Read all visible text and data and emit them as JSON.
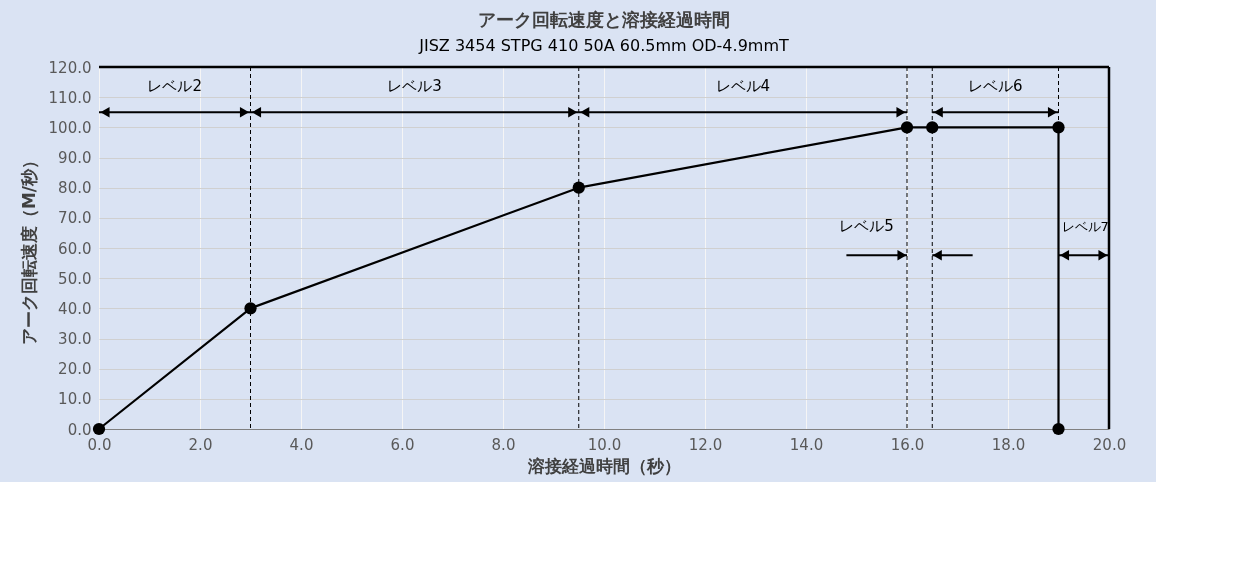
{
  "chart_data": {
    "type": "line",
    "title": "アーク回転速度と溶接経過時間",
    "subtitle": "JISZ 3454 STPG 410 50A  60.5mm OD-4.9mmT",
    "xlabel": "溶接経過時間（秒）",
    "ylabel": "アーク回転速度（M/秒）",
    "series": [
      {
        "color": "#000000",
        "x": [
          0,
          3.0,
          9.5,
          16.0,
          16.5,
          19.0,
          19.0
        ],
        "values": [
          0,
          40,
          80,
          100,
          100,
          100,
          0
        ]
      }
    ],
    "xlim": [
      0,
      20
    ],
    "ylim": [
      0,
      120
    ],
    "xticks": [
      {
        "value": 0,
        "label": "0.0"
      },
      {
        "value": 2,
        "label": "2.0"
      },
      {
        "value": 4,
        "label": "4.0"
      },
      {
        "value": 6,
        "label": "6.0"
      },
      {
        "value": 8,
        "label": "8.0"
      },
      {
        "value": 10,
        "label": "10.0"
      },
      {
        "value": 12,
        "label": "12.0"
      },
      {
        "value": 14,
        "label": "14.0"
      },
      {
        "value": 16,
        "label": "16.0"
      },
      {
        "value": 18,
        "label": "18.0"
      },
      {
        "value": 20,
        "label": "20.0"
      }
    ],
    "yticks": [
      {
        "value": 0,
        "label": "0.0"
      },
      {
        "value": 10,
        "label": "10.0"
      },
      {
        "value": 20,
        "label": "20.0"
      },
      {
        "value": 30,
        "label": "30.0"
      },
      {
        "value": 40,
        "label": "40.0"
      },
      {
        "value": 50,
        "label": "50.0"
      },
      {
        "value": 60,
        "label": "60.0"
      },
      {
        "value": 70,
        "label": "70.0"
      },
      {
        "value": 80,
        "label": "80.0"
      },
      {
        "value": 90,
        "label": "90.0"
      },
      {
        "value": 100,
        "label": "100.0"
      },
      {
        "value": 110,
        "label": "110.0"
      },
      {
        "value": 120,
        "label": "120.0"
      }
    ],
    "ref_lines": [
      {
        "axis": "x",
        "value": 3.0,
        "line_style": "dashed"
      },
      {
        "axis": "x",
        "value": 9.5,
        "line_style": "dashed"
      },
      {
        "axis": "x",
        "value": 16.0,
        "line_style": "dashed"
      },
      {
        "axis": "x",
        "value": 16.5,
        "line_style": "dashed"
      },
      {
        "axis": "x",
        "value": 19.0,
        "line_style": "dashed"
      }
    ],
    "annotations": [
      "レベル2",
      "レベル3",
      "レベル4",
      "レベル5",
      "レベル6",
      "レベル7"
    ],
    "grid": true,
    "marker": "circle",
    "line_style": "solid"
  }
}
